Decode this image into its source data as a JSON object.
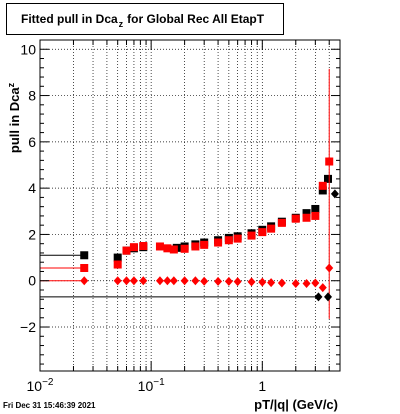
{
  "chart_data": {
    "type": "scatter",
    "title_main": "Fitted pull in Dca",
    "title_sub": "z",
    "title_rest": "for Global Rec All EtapT",
    "xlabel": "pT/|q| (GeV/c)",
    "ylabel_main": "pull in Dca",
    "ylabel_sub": "z",
    "xscale": "log",
    "xlim": [
      0.01,
      5.0
    ],
    "ylim": [
      -3.9,
      10.4
    ],
    "grid": true,
    "x_ticks": [
      {
        "value": 0.01,
        "base": "10",
        "exp": "−2"
      },
      {
        "value": 0.1,
        "base": "10",
        "exp": "−1"
      },
      {
        "value": 1,
        "base": "1",
        "exp": ""
      }
    ],
    "y_ticks": [
      -2,
      0,
      2,
      4,
      6,
      8,
      10
    ],
    "timestamp": "Fri Dec 31 15:46:39 2021",
    "series": [
      {
        "color": "#000000",
        "marker": "square",
        "points": [
          {
            "x": 0.025,
            "y": 1.1
          },
          {
            "x": 0.05,
            "y": 1.0
          },
          {
            "x": 0.06,
            "y": 1.3
          },
          {
            "x": 0.07,
            "y": 1.4
          },
          {
            "x": 0.085,
            "y": 1.45
          },
          {
            "x": 0.17,
            "y": 1.42
          },
          {
            "x": 0.2,
            "y": 1.48
          },
          {
            "x": 0.25,
            "y": 1.57
          },
          {
            "x": 0.3,
            "y": 1.65
          },
          {
            "x": 0.4,
            "y": 1.75
          },
          {
            "x": 0.5,
            "y": 1.85
          },
          {
            "x": 0.6,
            "y": 1.92
          },
          {
            "x": 0.8,
            "y": 2.05
          },
          {
            "x": 1.0,
            "y": 2.2
          },
          {
            "x": 1.2,
            "y": 2.35
          },
          {
            "x": 1.5,
            "y": 2.55
          },
          {
            "x": 2.0,
            "y": 2.72
          },
          {
            "x": 2.5,
            "y": 2.92
          },
          {
            "x": 3.0,
            "y": 3.1
          },
          {
            "x": 3.5,
            "y": 3.9
          },
          {
            "x": 3.9,
            "y": 4.4
          }
        ]
      },
      {
        "color": "#ff0000",
        "marker": "square",
        "points": [
          {
            "x": 0.025,
            "y": 0.55
          },
          {
            "x": 0.05,
            "y": 0.7
          },
          {
            "x": 0.06,
            "y": 1.3
          },
          {
            "x": 0.07,
            "y": 1.45
          },
          {
            "x": 0.085,
            "y": 1.5
          },
          {
            "x": 0.12,
            "y": 1.48
          },
          {
            "x": 0.14,
            "y": 1.4
          },
          {
            "x": 0.16,
            "y": 1.35
          },
          {
            "x": 0.2,
            "y": 1.38
          },
          {
            "x": 0.25,
            "y": 1.48
          },
          {
            "x": 0.3,
            "y": 1.55
          },
          {
            "x": 0.4,
            "y": 1.65
          },
          {
            "x": 0.5,
            "y": 1.75
          },
          {
            "x": 0.6,
            "y": 1.82
          },
          {
            "x": 0.8,
            "y": 1.95
          },
          {
            "x": 1.0,
            "y": 2.1
          },
          {
            "x": 1.2,
            "y": 2.25
          },
          {
            "x": 1.5,
            "y": 2.5
          },
          {
            "x": 2.0,
            "y": 2.68
          },
          {
            "x": 2.5,
            "y": 2.72
          },
          {
            "x": 3.0,
            "y": 2.8
          },
          {
            "x": 3.5,
            "y": 4.1
          },
          {
            "x": 4.0,
            "y": 5.15,
            "err": 4.0
          }
        ]
      },
      {
        "color": "#000000",
        "marker": "diamond",
        "points": [
          {
            "x": 3.2,
            "y": -0.7
          },
          {
            "x": 3.9,
            "y": -0.7
          },
          {
            "x": 4.5,
            "y": 3.75
          }
        ]
      },
      {
        "color": "#ff0000",
        "marker": "diamond",
        "points": [
          {
            "x": 0.025,
            "y": 0.0
          },
          {
            "x": 0.05,
            "y": 0.0
          },
          {
            "x": 0.06,
            "y": 0.0
          },
          {
            "x": 0.07,
            "y": 0.0
          },
          {
            "x": 0.085,
            "y": 0.0
          },
          {
            "x": 0.12,
            "y": 0.0
          },
          {
            "x": 0.14,
            "y": 0.0
          },
          {
            "x": 0.16,
            "y": 0.0
          },
          {
            "x": 0.2,
            "y": 0.0
          },
          {
            "x": 0.25,
            "y": 0.0
          },
          {
            "x": 0.3,
            "y": -0.02
          },
          {
            "x": 0.4,
            "y": -0.03
          },
          {
            "x": 0.5,
            "y": -0.03
          },
          {
            "x": 0.6,
            "y": -0.04
          },
          {
            "x": 0.8,
            "y": -0.05
          },
          {
            "x": 1.0,
            "y": -0.06
          },
          {
            "x": 1.2,
            "y": -0.08
          },
          {
            "x": 1.5,
            "y": -0.1
          },
          {
            "x": 2.0,
            "y": -0.12
          },
          {
            "x": 2.5,
            "y": -0.12
          },
          {
            "x": 3.0,
            "y": -0.1
          },
          {
            "x": 3.5,
            "y": -0.3
          },
          {
            "x": 4.0,
            "y": 0.55
          }
        ]
      }
    ]
  }
}
